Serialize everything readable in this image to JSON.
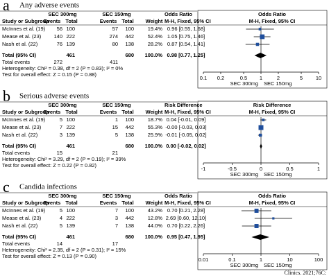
{
  "panels": [
    {
      "letter": "a",
      "title": "Any adverse events",
      "group1": "SEC 300mg",
      "group2": "SEC 150mg",
      "columns": [
        "Study or Subgroup",
        "Events",
        "Total",
        "Events",
        "Total",
        "Weight"
      ],
      "effect_header": "Odds Ratio",
      "effect_sub": "M-H, Fixed, 95% CI",
      "studies": [
        {
          "name": "McInnes et al. (19)",
          "e1": 56,
          "t1": 100,
          "e2": 57,
          "t2": 100,
          "weight": 19.4,
          "weight_label": "19.4%",
          "ci_label": "0.96 [0.55, 1.68]",
          "est": 0.96,
          "lo": 0.55,
          "hi": 1.68
        },
        {
          "name": "Mease et al. (23)",
          "e1": 140,
          "t1": 222,
          "e2": 274,
          "t2": 442,
          "weight": 52.4,
          "weight_label": "52.4%",
          "ci_label": "1.05 [0.75, 1.46]",
          "est": 1.05,
          "lo": 0.75,
          "hi": 1.46
        },
        {
          "name": "Nash et al. (22)",
          "e1": 76,
          "t1": 139,
          "e2": 80,
          "t2": 138,
          "weight": 28.2,
          "weight_label": "28.2%",
          "ci_label": "0.87 [0.54, 1.41]",
          "est": 0.87,
          "lo": 0.54,
          "hi": 1.41
        }
      ],
      "total": {
        "name": "Total (95% CI)",
        "t1": 461,
        "t2": 680,
        "weight_label": "100.0%",
        "ci_label": "0.98 [0.77, 1.25]",
        "est": 0.98,
        "lo": 0.77,
        "hi": 1.25
      },
      "total_events": {
        "name": "Total events",
        "e1": 272,
        "e2": 411
      },
      "heterogeneity": "Heterogeneity: Chi² = 0.38, df = 2 (P = 0.83); I² = 0%",
      "overall": "Test for overall effect: Z = 0.15 (P = 0.88)",
      "axis": {
        "log": true,
        "xlim": [
          0.1,
          10
        ],
        "xticks": [
          0.1,
          0.2,
          0.5,
          1,
          2,
          5,
          10
        ],
        "null": 1,
        "left_label": "SEC 300mg",
        "right_label": "SEC 150mg"
      }
    },
    {
      "letter": "b",
      "title": "Serious adverse events",
      "group1": "SEC 300mg",
      "group2": "SEC 150mg",
      "columns": [
        "Study or Subgroup",
        "Events",
        "Total",
        "Events",
        "Total",
        "Weight"
      ],
      "effect_header": "Risk Difference",
      "effect_sub": "M-H, Fixed, 95% CI",
      "studies": [
        {
          "name": "McInnes et al. (19)",
          "e1": 5,
          "t1": 100,
          "e2": 1,
          "t2": 100,
          "weight": 18.7,
          "weight_label": "18.7%",
          "ci_label": "0.04 [-0.01, 0.09]",
          "est": 0.04,
          "lo": -0.01,
          "hi": 0.09
        },
        {
          "name": "Mease et al. (23)",
          "e1": 7,
          "t1": 222,
          "e2": 15,
          "t2": 442,
          "weight": 55.3,
          "weight_label": "55.3%",
          "ci_label": "-0.00 [-0.03, 0.03]",
          "est": -0.0,
          "lo": -0.03,
          "hi": 0.03
        },
        {
          "name": "Nash et al. (22)",
          "e1": 3,
          "t1": 139,
          "e2": 5,
          "t2": 138,
          "weight": 25.9,
          "weight_label": "25.9%",
          "ci_label": "-0.01 [-0.05, 0.02]",
          "est": -0.01,
          "lo": -0.05,
          "hi": 0.02
        }
      ],
      "total": {
        "name": "Total (95% CI)",
        "t1": 461,
        "t2": 680,
        "weight_label": "100.0%",
        "ci_label": "0.00 [-0.02, 0.02]",
        "est": 0.0,
        "lo": -0.02,
        "hi": 0.02
      },
      "total_events": {
        "name": "Total events",
        "e1": 15,
        "e2": 21
      },
      "heterogeneity": "Heterogeneity: Chi² = 3.29, df = 2 (P = 0.19); I² = 39%",
      "overall": "Test for overall effect: Z = 0.22 (P = 0.82)",
      "axis": {
        "log": false,
        "xlim": [
          -1,
          1
        ],
        "xticks": [
          -1,
          -0.5,
          0,
          0.5,
          1
        ],
        "null": 0,
        "left_label": "SEC 300mg",
        "right_label": "SEC 150mg"
      }
    },
    {
      "letter": "c",
      "title": "Candida infections",
      "group1": "SEC 300mg",
      "group2": "SEC 150mg",
      "columns": [
        "Study or Subgroup",
        "Events",
        "Total",
        "Events",
        "Total",
        "Weight"
      ],
      "effect_header": "Odds Ratio",
      "effect_sub": "M-H, Fixed, 95% CI",
      "studies": [
        {
          "name": "McInnes et al. (19)",
          "e1": 5,
          "t1": 100,
          "e2": 7,
          "t2": 100,
          "weight": 43.2,
          "weight_label": "43.2%",
          "ci_label": "0.70 [0.21, 2.28]",
          "est": 0.7,
          "lo": 0.21,
          "hi": 2.28
        },
        {
          "name": "Mease et al. (23)",
          "e1": 4,
          "t1": 222,
          "e2": 3,
          "t2": 442,
          "weight": 12.8,
          "weight_label": "12.8%",
          "ci_label": "2.69 [0.60, 12.10]",
          "est": 2.69,
          "lo": 0.6,
          "hi": 12.1
        },
        {
          "name": "Nash et al. (22)",
          "e1": 5,
          "t1": 139,
          "e2": 7,
          "t2": 138,
          "weight": 44.0,
          "weight_label": "44.0%",
          "ci_label": "0.70 [0.22, 2.26]",
          "est": 0.7,
          "lo": 0.22,
          "hi": 2.26
        }
      ],
      "total": {
        "name": "Total (95% CI)",
        "t1": 461,
        "t2": 680,
        "weight_label": "100.0%",
        "ci_label": "0.95 [0.47, 1.95]",
        "est": 0.95,
        "lo": 0.47,
        "hi": 1.95
      },
      "total_events": {
        "name": "Total events",
        "e1": 14,
        "e2": 17
      },
      "heterogeneity": "Heterogeneity: Chi² = 2.35, df = 2 (P = 0.31); I² = 15%",
      "overall": "Test for overall effect: Z = 0.13 (P = 0.90)",
      "axis": {
        "log": true,
        "xlim": [
          0.01,
          100
        ],
        "xticks": [
          0.01,
          0.1,
          1,
          10,
          100
        ],
        "null": 1,
        "left_label": "SEC 300mg",
        "right_label": "SEC 150mg"
      }
    }
  ],
  "source": "Clinics. 2021;76C:"
}
